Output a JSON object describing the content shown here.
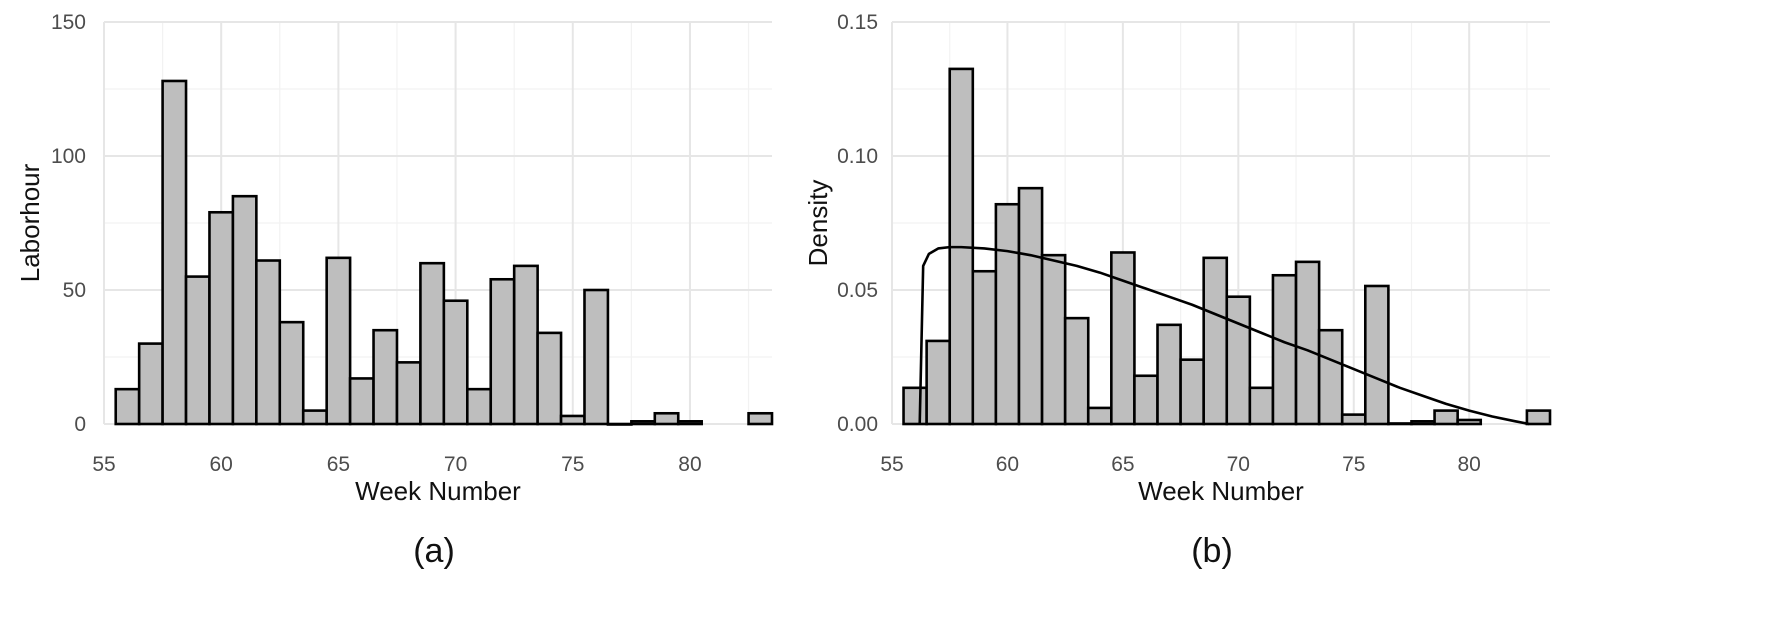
{
  "chart_data": [
    {
      "type": "bar",
      "caption": "(a)",
      "xlabel": "Week Number",
      "ylabel": "Laborhour",
      "xlim": [
        55,
        83.5
      ],
      "ylim": [
        0,
        150
      ],
      "xticks": [
        55,
        60,
        65,
        70,
        75,
        80
      ],
      "yticks": [
        0,
        50,
        100,
        150
      ],
      "x_tick_labels": [
        "55",
        "60",
        "65",
        "70",
        "75",
        "80"
      ],
      "y_tick_labels": [
        "0",
        "50",
        "100",
        "150"
      ],
      "grid": true,
      "bin_width": 1,
      "x": [
        56,
        57,
        58,
        59,
        60,
        61,
        62,
        63,
        64,
        65,
        66,
        67,
        68,
        69,
        70,
        71,
        72,
        73,
        74,
        75,
        76,
        77,
        78,
        79,
        80,
        83
      ],
      "values": [
        13,
        30,
        128,
        55,
        79,
        85,
        61,
        38,
        5,
        62,
        17,
        35,
        23,
        60,
        46,
        13,
        54,
        59,
        34,
        3,
        50,
        0,
        1,
        4,
        1,
        4
      ],
      "bar_fill": "#bebebe",
      "bar_stroke": "#000000"
    },
    {
      "type": "bar",
      "caption": "(b)",
      "xlabel": "Week Number",
      "ylabel": "Density",
      "xlim": [
        55,
        83.5
      ],
      "ylim": [
        0,
        0.15
      ],
      "xticks": [
        55,
        60,
        65,
        70,
        75,
        80
      ],
      "yticks": [
        0,
        0.05,
        0.1,
        0.15
      ],
      "x_tick_labels": [
        "55",
        "60",
        "65",
        "70",
        "75",
        "80"
      ],
      "y_tick_labels": [
        "0.00",
        "0.05",
        "0.10",
        "0.15"
      ],
      "grid": true,
      "bin_width": 1,
      "x": [
        56,
        57,
        58,
        59,
        60,
        61,
        62,
        63,
        64,
        65,
        66,
        67,
        68,
        69,
        70,
        71,
        72,
        73,
        74,
        75,
        76,
        77,
        78,
        79,
        80,
        83
      ],
      "values": [
        0.0135,
        0.031,
        0.1325,
        0.057,
        0.082,
        0.088,
        0.063,
        0.0395,
        0.006,
        0.064,
        0.018,
        0.037,
        0.024,
        0.062,
        0.0475,
        0.0135,
        0.0555,
        0.0605,
        0.035,
        0.0035,
        0.0515,
        0.0002,
        0.001,
        0.005,
        0.0015,
        0.005
      ],
      "bar_fill": "#bebebe",
      "bar_stroke": "#000000",
      "curve": {
        "x": [
          56.2,
          56.35,
          56.6,
          57,
          57.5,
          58,
          59,
          60,
          61,
          62,
          63,
          64,
          65,
          66,
          67,
          68,
          69,
          70,
          71,
          72,
          73,
          74,
          75,
          76,
          77,
          78,
          79,
          80,
          81,
          82,
          82.6
        ],
        "y": [
          0.0,
          0.059,
          0.0635,
          0.0655,
          0.066,
          0.066,
          0.0655,
          0.0645,
          0.063,
          0.061,
          0.059,
          0.0565,
          0.0535,
          0.0505,
          0.0475,
          0.0445,
          0.041,
          0.0375,
          0.034,
          0.0305,
          0.0275,
          0.024,
          0.0205,
          0.017,
          0.0135,
          0.0105,
          0.0075,
          0.005,
          0.0028,
          0.001,
          0.0
        ],
        "stroke": "#000000"
      }
    }
  ]
}
